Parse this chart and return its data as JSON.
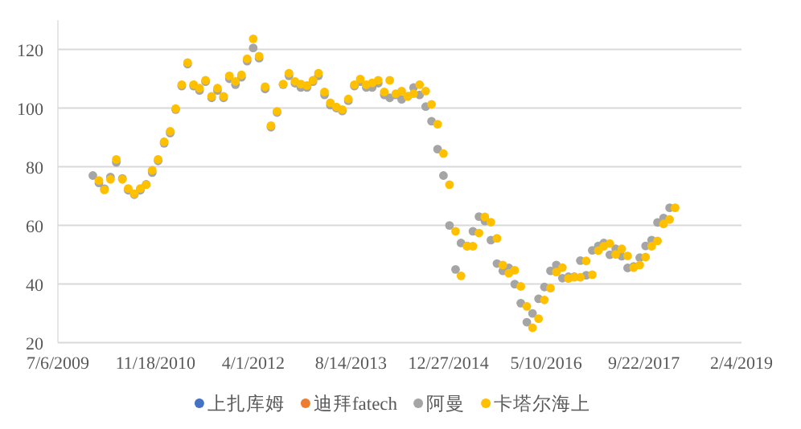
{
  "chart_data": {
    "type": "scatter",
    "marker": "circle",
    "grid": "y",
    "legend": "bottom",
    "xlim": [
      "2009-07-06",
      "2019-02-04"
    ],
    "xticks": [
      {
        "value": "2009-07-06",
        "label": "7/6/2009"
      },
      {
        "value": "2010-11-18",
        "label": "11/18/2010"
      },
      {
        "value": "2012-04-01",
        "label": "4/1/2012"
      },
      {
        "value": "2013-08-14",
        "label": "8/14/2013"
      },
      {
        "value": "2014-12-27",
        "label": "12/27/2014"
      },
      {
        "value": "2016-05-10",
        "label": "5/10/2016"
      },
      {
        "value": "2017-09-22",
        "label": "9/22/2017"
      },
      {
        "value": "2019-02-04",
        "label": "2/4/2019"
      }
    ],
    "ylim": [
      20,
      130
    ],
    "yticks": [
      20,
      40,
      60,
      80,
      100,
      120
    ],
    "series": [
      {
        "name": "上扎库姆",
        "color": "#4472c4"
      },
      {
        "name": "迪拜fatech",
        "color": "#ed7d31"
      },
      {
        "name": "阿曼",
        "color": "#a5a5a5",
        "x": [
          "2010-01",
          "2010-02",
          "2010-03",
          "2010-04",
          "2010-05",
          "2010-06",
          "2010-07",
          "2010-08",
          "2010-09",
          "2010-10",
          "2010-11",
          "2010-12",
          "2011-01",
          "2011-02",
          "2011-03",
          "2011-04",
          "2011-05",
          "2011-06",
          "2011-07",
          "2011-08",
          "2011-09",
          "2011-10",
          "2011-11",
          "2011-12",
          "2012-01",
          "2012-02",
          "2012-03",
          "2012-04",
          "2012-05",
          "2012-06",
          "2012-07",
          "2012-08",
          "2012-09",
          "2012-10",
          "2012-11",
          "2012-12",
          "2013-01",
          "2013-02",
          "2013-03",
          "2013-04",
          "2013-05",
          "2013-06",
          "2013-07",
          "2013-08",
          "2013-09",
          "2013-10",
          "2013-11",
          "2013-12",
          "2014-01",
          "2014-02",
          "2014-03",
          "2014-04",
          "2014-05",
          "2014-06",
          "2014-07",
          "2014-08",
          "2014-09",
          "2014-10",
          "2014-11",
          "2014-12",
          "2015-01",
          "2015-02",
          "2015-03",
          "2015-04",
          "2015-05",
          "2015-06",
          "2015-07",
          "2015-08",
          "2015-09",
          "2015-10",
          "2015-11",
          "2015-12",
          "2016-01",
          "2016-02",
          "2016-03",
          "2016-04",
          "2016-05",
          "2016-06",
          "2016-07",
          "2016-08",
          "2016-09",
          "2016-10",
          "2016-11",
          "2016-12",
          "2017-01",
          "2017-02",
          "2017-03",
          "2017-04",
          "2017-05",
          "2017-06",
          "2017-07",
          "2017-08",
          "2017-09",
          "2017-10",
          "2017-11",
          "2017-12",
          "2018-01",
          "2018-02"
        ],
        "values": [
          77,
          74.5,
          72.5,
          76.5,
          81.5,
          76,
          72,
          70.5,
          72,
          74,
          78,
          82,
          88,
          91.5,
          99.5,
          107.5,
          115,
          107.5,
          106,
          109,
          103.5,
          106,
          103.5,
          110,
          108,
          110.5,
          116,
          120.5,
          117,
          106.5,
          93.5,
          98.5,
          108,
          111,
          108.5,
          107,
          107,
          109,
          111,
          104.5,
          101,
          100,
          99,
          102.5,
          107.5,
          109,
          107,
          107,
          108.5,
          104.5,
          103.5,
          104.5,
          103,
          104,
          107,
          104.5,
          100.5,
          95.5,
          86,
          77,
          60,
          45,
          54,
          53,
          58,
          63,
          61.5,
          55,
          47,
          44.5,
          45.5,
          40,
          33.5,
          27,
          30,
          35,
          39,
          44.5,
          46.5,
          42,
          42.5,
          42.5,
          48,
          43,
          51.5,
          53,
          54,
          50,
          52,
          49.5,
          45.5,
          46,
          49,
          53,
          55,
          61,
          62.5,
          66
        ]
      },
      {
        "name": "卡塔尔海上",
        "color": "#ffc000",
        "x": [
          "2010-02",
          "2010-03",
          "2010-04",
          "2010-05",
          "2010-06",
          "2010-07",
          "2010-08",
          "2010-09",
          "2010-10",
          "2010-11",
          "2010-12",
          "2011-01",
          "2011-02",
          "2011-03",
          "2011-04",
          "2011-05",
          "2011-06",
          "2011-07",
          "2011-08",
          "2011-09",
          "2011-10",
          "2011-11",
          "2011-12",
          "2012-01",
          "2012-02",
          "2012-03",
          "2012-04",
          "2012-05",
          "2012-06",
          "2012-07",
          "2012-08",
          "2012-09",
          "2012-10",
          "2012-11",
          "2012-12",
          "2013-01",
          "2013-02",
          "2013-03",
          "2013-04",
          "2013-05",
          "2013-06",
          "2013-07",
          "2013-08",
          "2013-09",
          "2013-10",
          "2013-11",
          "2013-12",
          "2014-01",
          "2014-02",
          "2014-03",
          "2014-04",
          "2014-05",
          "2014-06",
          "2014-07",
          "2014-08",
          "2014-09",
          "2014-10",
          "2014-11",
          "2014-12",
          "2015-01",
          "2015-02",
          "2015-03",
          "2015-04",
          "2015-05",
          "2015-06",
          "2015-07",
          "2015-08",
          "2015-09",
          "2015-10",
          "2015-11",
          "2015-12",
          "2016-01",
          "2016-02",
          "2016-03",
          "2016-04",
          "2016-05",
          "2016-06",
          "2016-07",
          "2016-08",
          "2016-09",
          "2016-10",
          "2016-11",
          "2016-12",
          "2017-01",
          "2017-02",
          "2017-03",
          "2017-04",
          "2017-05",
          "2017-06",
          "2017-07",
          "2017-08",
          "2017-09",
          "2017-10",
          "2017-11",
          "2017-12",
          "2018-01",
          "2018-02",
          "2018-03"
        ],
        "values": [
          75.3,
          72.1,
          75.7,
          82.5,
          75.7,
          72.6,
          70.8,
          72.6,
          73.9,
          78.8,
          82.5,
          88.5,
          92.1,
          99.8,
          108,
          115.5,
          108,
          106.8,
          109.5,
          104,
          106.8,
          104,
          111,
          109.1,
          111.3,
          116.8,
          123.6,
          117.7,
          107.3,
          94,
          98.9,
          108.2,
          111.9,
          109.1,
          108.2,
          107.7,
          109.5,
          111.9,
          105.5,
          101.8,
          100.4,
          99.5,
          103.1,
          108,
          109.9,
          108,
          108.6,
          109.5,
          105.5,
          109.5,
          104.9,
          105.8,
          104,
          104.9,
          108,
          105.8,
          101.3,
          94.5,
          84.5,
          73.9,
          58,
          42.8,
          52.9,
          52.9,
          57.4,
          62.9,
          61.1,
          55.6,
          46.5,
          43.7,
          44.7,
          39.2,
          32.4,
          25.1,
          28.2,
          34.6,
          38.6,
          44.1,
          45.6,
          41.9,
          42.3,
          42.3,
          47.9,
          43.2,
          51.4,
          52.9,
          53.8,
          50.1,
          52,
          49.6,
          45.6,
          46.5,
          49.2,
          52.9,
          54.7,
          60.5,
          62,
          66
        ]
      }
    ]
  }
}
